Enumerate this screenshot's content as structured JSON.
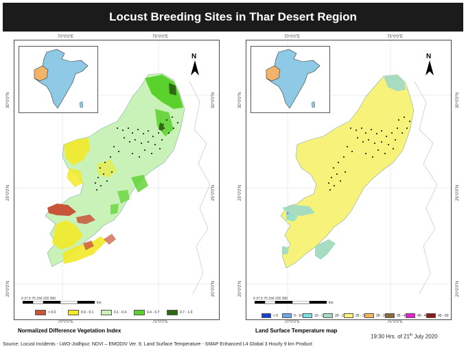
{
  "title": "Locust Breeding Sites in Thar Desert Region",
  "coords": {
    "lon_70": "70°0'0\"E",
    "lon_75": "75°0'0\"E",
    "lat_30": "30°0'0\"N",
    "lat_25": "25°0'0\"N",
    "lat_20": "20°0'0\"N"
  },
  "north_label": "N",
  "scale_ticks": "0  37.5 75      150      225      300",
  "scale_unit": "km",
  "ndvi": {
    "caption": "Normalized Difference Vegetation Index",
    "legend": [
      {
        "label": "< 0.0",
        "color": "#c8553a"
      },
      {
        "label": "0.0 - 0.1",
        "color": "#f2ea2a"
      },
      {
        "label": "0.1 - 0.4",
        "color": "#c9f2b8"
      },
      {
        "label": "0.4 - 0.7",
        "color": "#5ad12c"
      },
      {
        "label": "0.7 - 1.0",
        "color": "#2d6a10"
      }
    ]
  },
  "lst": {
    "caption": "Land Surface Temperature map",
    "legend": [
      {
        "label": "< 0",
        "color": "#1a3fd6"
      },
      {
        "label": "0 - 10",
        "color": "#6fa6e8"
      },
      {
        "label": "10 - 15",
        "color": "#7fdce0"
      },
      {
        "label": "20 - 25",
        "color": "#a8dcc0"
      },
      {
        "label": "25 - 30",
        "color": "#f7f27a"
      },
      {
        "label": "30 - 35",
        "color": "#f2b75a"
      },
      {
        "label": "35 - 40",
        "color": "#8c6a3a"
      },
      {
        "label": "40 - 45",
        "color": "#e61fd2"
      },
      {
        "label": "45 - 50",
        "color": "#8b1a1a"
      }
    ]
  },
  "source_text": "Source: Locust Incidents - LWO-Jodhpur; NDVI – EMODIV Ver. 6; Land Surface Temperature - SMAP Enhanced L4 Global 3 Hourly 9 km Product",
  "timestamp_main": "19:30 Hrs. of 21",
  "timestamp_sup": "th",
  "timestamp_end": " July 2020"
}
